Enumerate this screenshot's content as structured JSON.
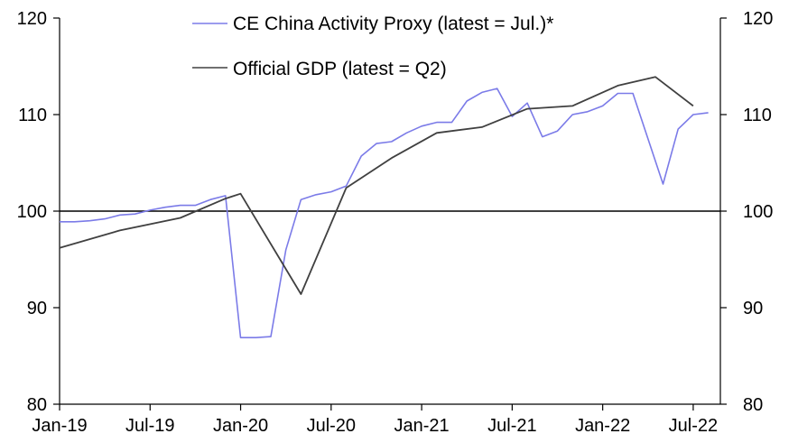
{
  "chart_data": {
    "type": "line",
    "title": "",
    "xlabel": "",
    "ylabel": "",
    "ylim": [
      80,
      120
    ],
    "yticks_left": [
      "80",
      "90",
      "100",
      "110",
      "120"
    ],
    "yticks_right": [
      "80",
      "90",
      "100",
      "110",
      "120"
    ],
    "reference_line": 100,
    "xlim": [
      "2019-01",
      "2022-07"
    ],
    "xticks": [
      {
        "label": "Jan-19",
        "month": 0
      },
      {
        "label": "Jul-19",
        "month": 6
      },
      {
        "label": "Jan-20",
        "month": 12
      },
      {
        "label": "Jul-20",
        "month": 18
      },
      {
        "label": "Jan-21",
        "month": 24
      },
      {
        "label": "Jul-21",
        "month": 30
      },
      {
        "label": "Jan-22",
        "month": 36
      },
      {
        "label": "Jul-22",
        "month": 42
      }
    ],
    "legend_position": "top-center",
    "series": [
      {
        "name": "CE China Activity Proxy (latest = Jul.)*",
        "color": "#7b7be8",
        "frequency": "monthly",
        "points": [
          [
            0,
            98.9
          ],
          [
            1,
            98.9
          ],
          [
            2,
            99.0
          ],
          [
            3,
            99.2
          ],
          [
            4,
            99.6
          ],
          [
            5,
            99.7
          ],
          [
            6,
            100.1
          ],
          [
            7,
            100.4
          ],
          [
            8,
            100.6
          ],
          [
            9,
            100.6
          ],
          [
            10,
            101.2
          ],
          [
            11,
            101.6
          ],
          [
            12,
            86.9
          ],
          [
            13,
            86.9
          ],
          [
            14,
            87.0
          ],
          [
            15,
            96.0
          ],
          [
            16,
            101.2
          ],
          [
            17,
            101.7
          ],
          [
            18,
            102.0
          ],
          [
            19,
            102.6
          ],
          [
            20,
            105.7
          ],
          [
            21,
            107.0
          ],
          [
            22,
            107.2
          ],
          [
            23,
            108.1
          ],
          [
            24,
            108.8
          ],
          [
            25,
            109.2
          ],
          [
            26,
            109.2
          ],
          [
            27,
            111.4
          ],
          [
            28,
            112.3
          ],
          [
            29,
            112.7
          ],
          [
            30,
            109.8
          ],
          [
            31,
            111.2
          ],
          [
            32,
            107.7
          ],
          [
            33,
            108.3
          ],
          [
            34,
            110.0
          ],
          [
            35,
            110.3
          ],
          [
            36,
            110.9
          ],
          [
            37,
            112.2
          ],
          [
            38,
            112.2
          ],
          [
            39,
            107.5
          ],
          [
            40,
            102.8
          ],
          [
            41,
            108.5
          ],
          [
            42,
            110.0
          ],
          [
            43,
            110.2
          ]
        ]
      },
      {
        "name": "Official GDP (latest = Q2)",
        "color": "#404040",
        "frequency": "quarterly",
        "points": [
          [
            0,
            96.2
          ],
          [
            4,
            98.0
          ],
          [
            8,
            99.3
          ],
          [
            11,
            101.3
          ],
          [
            12,
            101.8
          ],
          [
            16,
            91.4
          ],
          [
            19,
            102.4
          ],
          [
            22,
            105.5
          ],
          [
            25,
            108.1
          ],
          [
            28,
            108.7
          ],
          [
            31,
            110.6
          ],
          [
            34,
            110.9
          ],
          [
            37,
            113.0
          ],
          [
            39.5,
            113.9
          ],
          [
            42,
            110.9
          ]
        ]
      }
    ]
  }
}
